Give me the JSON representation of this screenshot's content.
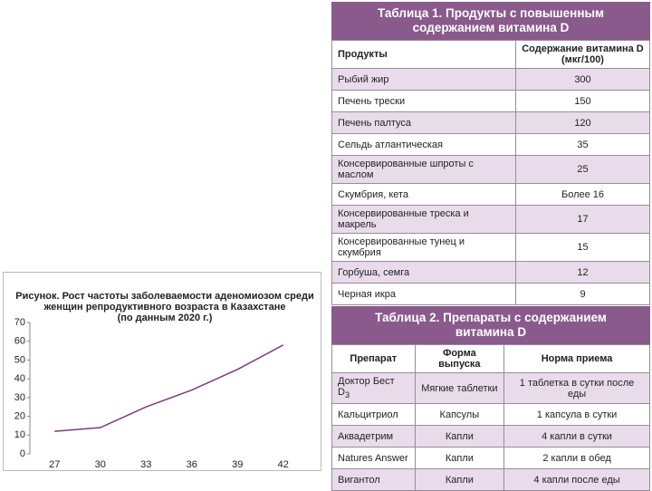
{
  "chart_data": {
    "type": "line",
    "title": [
      "Рисунок. Рост частоты заболеваемости аденомиозом среди",
      "женщин репродуктивного возраста в Казахстане",
      "(по данным 2020 г.)"
    ],
    "categories": [
      "27",
      "30",
      "33",
      "36",
      "39",
      "42"
    ],
    "values": [
      12,
      14,
      25,
      34,
      45,
      58
    ],
    "color": "#7b3b7b",
    "ylim": [
      0,
      70
    ],
    "yticks": [
      0,
      10,
      20,
      30,
      40,
      50,
      60,
      70
    ],
    "grid": false
  },
  "table1": {
    "title": "Таблица 1. Продукты с повышенным содержанием витамина D",
    "header": [
      "Продукты",
      "Содержание витамина D (мкг/100)"
    ],
    "rows": [
      [
        "Рыбий жир",
        "300"
      ],
      [
        "Печень трески",
        "150"
      ],
      [
        "Печень палтуса",
        "120"
      ],
      [
        "Сельдь атлантическая",
        "35"
      ],
      [
        "Консервированные шпроты с маслом",
        "25"
      ],
      [
        "Скумбрия, кета",
        "Более 16"
      ],
      [
        "Консервированные треска и макрель",
        "17"
      ],
      [
        "Консервированные тунец и скумбрия",
        "15"
      ],
      [
        "Горбуша, семга",
        "12"
      ],
      [
        "Черная икра",
        "9"
      ]
    ]
  },
  "table2": {
    "title": "Таблица 2. Препараты с содержанием витамина D",
    "header": [
      "Препарат",
      "Форма выпуска",
      "Норма приема"
    ],
    "rows": [
      [
        {
          "text": "Доктор Бест D",
          "sub": "3"
        },
        "Мягкие таблетки",
        "1 таблетка в сутки после еды"
      ],
      [
        "Кальцитриол",
        "Капсулы",
        "1 капсула в сутки"
      ],
      [
        "Аквадетрим",
        "Капли",
        "4 капли в сутки"
      ],
      [
        "Natures Answer",
        "Капли",
        "2 капли в обед"
      ],
      [
        "Вигантол",
        "Капли",
        "4 капли после еды"
      ]
    ]
  }
}
